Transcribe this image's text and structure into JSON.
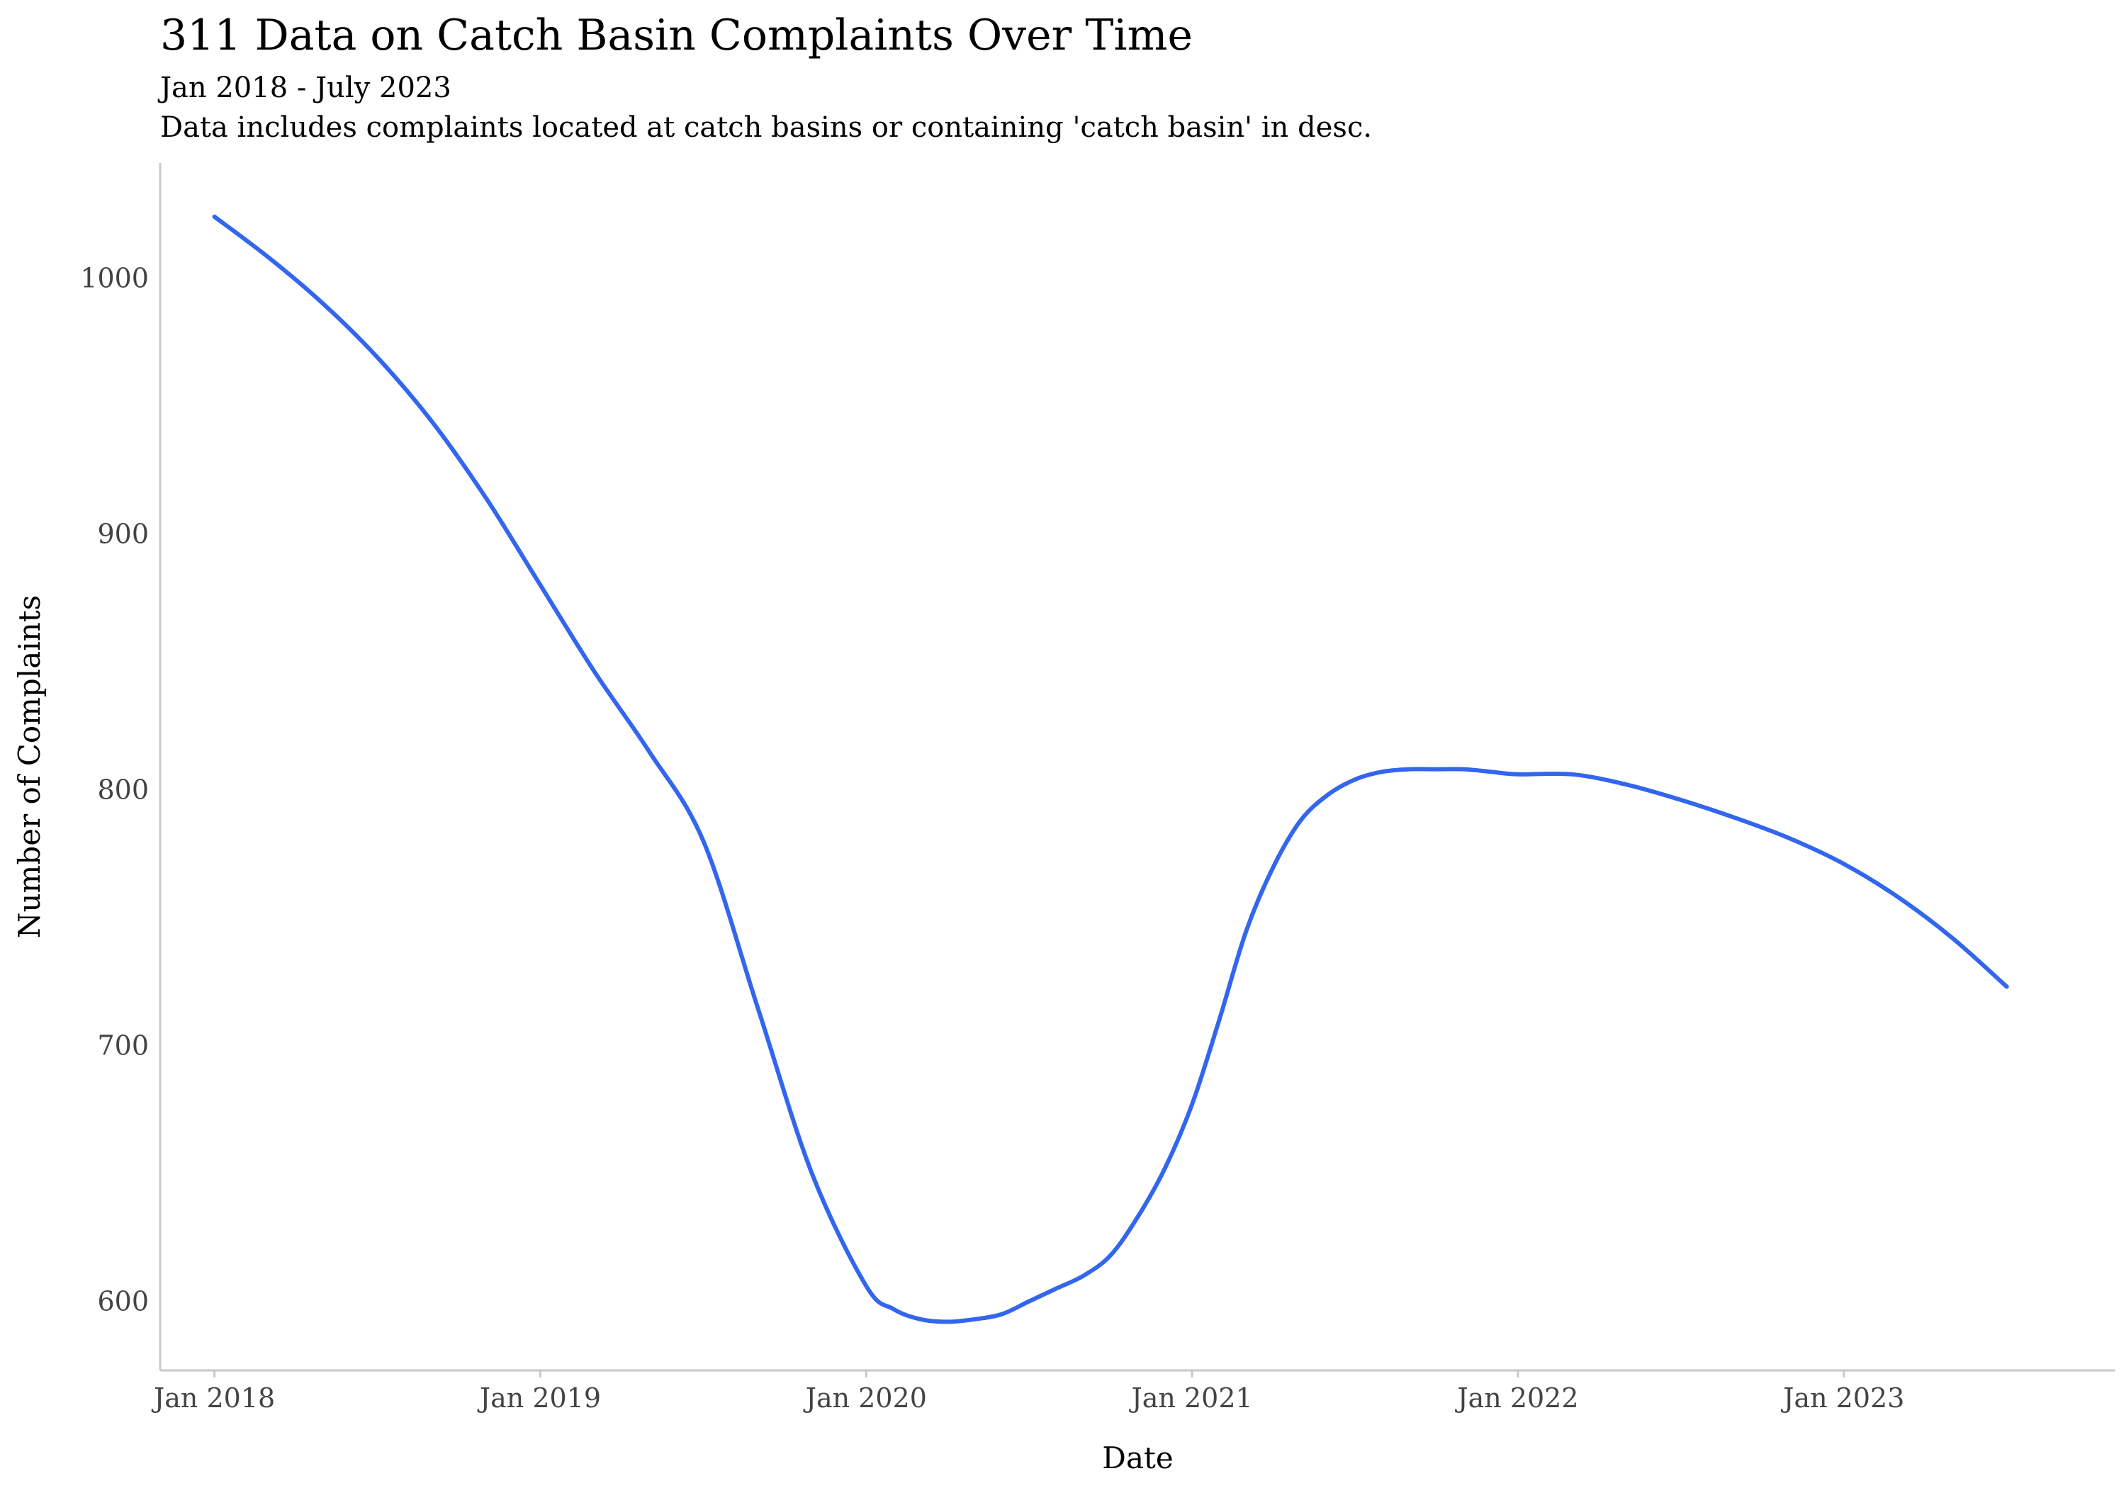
{
  "chart_data": {
    "type": "line",
    "title": "311 Data on Catch Basin Complaints Over Time",
    "subtitle": "Jan 2018 - July 2023",
    "caption": "Data includes complaints located at catch basins or containing 'catch basin' in desc.",
    "xlabel": "Date",
    "ylabel": "Number of Complaints",
    "x_ticks": [
      "Jan 2018",
      "Jan 2019",
      "Jan 2020",
      "Jan 2021",
      "Jan 2022",
      "Jan 2023"
    ],
    "y_ticks": [
      600,
      700,
      800,
      900,
      1000
    ],
    "xlim": [
      "2017-11",
      "2023-11"
    ],
    "ylim": [
      573,
      1045
    ],
    "grid": false,
    "line_color": "#3366EE",
    "series": [
      {
        "x": [
          "2018-01",
          "2018-03",
          "2018-05",
          "2018-07",
          "2018-09",
          "2018-11",
          "2019-01",
          "2019-03",
          "2019-05",
          "2019-07",
          "2019-09",
          "2019-11",
          "2020-01",
          "2020-02",
          "2020-03",
          "2020-04",
          "2020-05",
          "2020-06",
          "2020-07",
          "2020-08",
          "2020-09",
          "2020-10",
          "2020-11",
          "2020-12",
          "2021-01",
          "2021-02",
          "2021-03",
          "2021-04",
          "2021-05",
          "2021-06",
          "2021-07",
          "2021-08",
          "2021-09",
          "2021-10",
          "2021-11",
          "2021-12",
          "2022-01",
          "2022-03",
          "2022-05",
          "2022-07",
          "2022-09",
          "2022-11",
          "2023-01",
          "2023-03",
          "2023-05",
          "2023-07"
        ],
        "y": [
          1024,
          1008,
          990,
          969,
          944,
          914,
          880,
          846,
          815,
          780,
          715,
          650,
          606,
          597,
          593,
          592,
          593,
          595,
          600,
          605,
          610,
          618,
          633,
          652,
          677,
          710,
          745,
          770,
          788,
          798,
          804,
          807,
          808,
          808,
          808,
          807,
          806,
          806,
          802,
          796,
          789,
          781,
          771,
          758,
          742,
          723
        ]
      }
    ]
  }
}
